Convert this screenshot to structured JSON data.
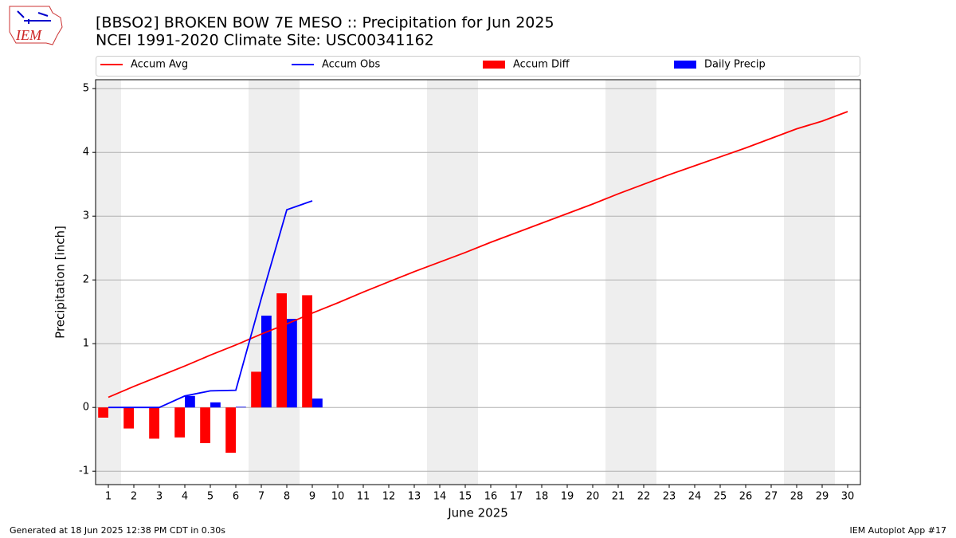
{
  "logo": "IEM",
  "footer_left": "Generated at 18 Jun 2025 12:38 PM CDT in 0.30s",
  "footer_right": "IEM Autoplot App #17",
  "chart_data": {
    "type": "combo",
    "title": "[BBSO2] BROKEN BOW 7E MESO :: Precipitation for Jun 2025",
    "subtitle": "NCEI 1991-2020 Climate Site: USC00341162",
    "xlabel": "June 2025",
    "ylabel": "Precipitation [inch]",
    "x": [
      1,
      2,
      3,
      4,
      5,
      6,
      7,
      8,
      9,
      10,
      11,
      12,
      13,
      14,
      15,
      16,
      17,
      18,
      19,
      20,
      21,
      22,
      23,
      24,
      25,
      26,
      27,
      28,
      29,
      30
    ],
    "xlim": [
      0.5,
      30.5
    ],
    "xticks": [
      1,
      2,
      3,
      4,
      5,
      6,
      7,
      8,
      9,
      10,
      11,
      12,
      13,
      14,
      15,
      16,
      17,
      18,
      19,
      20,
      21,
      22,
      23,
      24,
      25,
      26,
      27,
      28,
      29,
      30
    ],
    "ylim": [
      -1.21,
      5.14
    ],
    "yticks": [
      -1,
      0,
      1,
      2,
      3,
      4,
      5
    ],
    "grid": true,
    "shaded_days": [
      1,
      7,
      8,
      14,
      15,
      21,
      22,
      28,
      29
    ],
    "series": [
      {
        "name": "Accum Avg",
        "kind": "line",
        "color": "#ff0000",
        "values": [
          0.16,
          0.33,
          0.49,
          0.65,
          0.82,
          0.98,
          1.15,
          1.31,
          1.48,
          1.64,
          1.81,
          1.97,
          2.13,
          2.28,
          2.43,
          2.59,
          2.74,
          2.89,
          3.04,
          3.19,
          3.35,
          3.5,
          3.65,
          3.79,
          3.93,
          4.07,
          4.22,
          4.37,
          4.49,
          4.64
        ]
      },
      {
        "name": "Accum Obs",
        "kind": "line",
        "color": "#0000ff",
        "values": [
          0,
          0,
          0,
          0.18,
          0.26,
          0.27,
          1.71,
          3.1,
          3.24,
          null,
          null,
          null,
          null,
          null,
          null,
          null,
          null,
          null,
          null,
          null,
          null,
          null,
          null,
          null,
          null,
          null,
          null,
          null,
          null,
          null
        ]
      },
      {
        "name": "Accum Diff",
        "kind": "bar",
        "side": "left",
        "color": "#ff0000",
        "values": [
          -0.16,
          -0.33,
          -0.49,
          -0.47,
          -0.56,
          -0.71,
          0.56,
          1.79,
          1.76,
          null,
          null,
          null,
          null,
          null,
          null,
          null,
          null,
          null,
          null,
          null,
          null,
          null,
          null,
          null,
          null,
          null,
          null,
          null,
          null,
          null
        ]
      },
      {
        "name": "Daily Precip",
        "kind": "bar",
        "side": "right",
        "color": "#0000ff",
        "values": [
          0,
          0,
          0,
          0.18,
          0.08,
          0.01,
          1.44,
          1.39,
          0.14,
          null,
          null,
          null,
          null,
          null,
          null,
          null,
          null,
          null,
          null,
          null,
          null,
          null,
          null,
          null,
          null,
          null,
          null,
          null,
          null,
          null
        ]
      }
    ]
  }
}
